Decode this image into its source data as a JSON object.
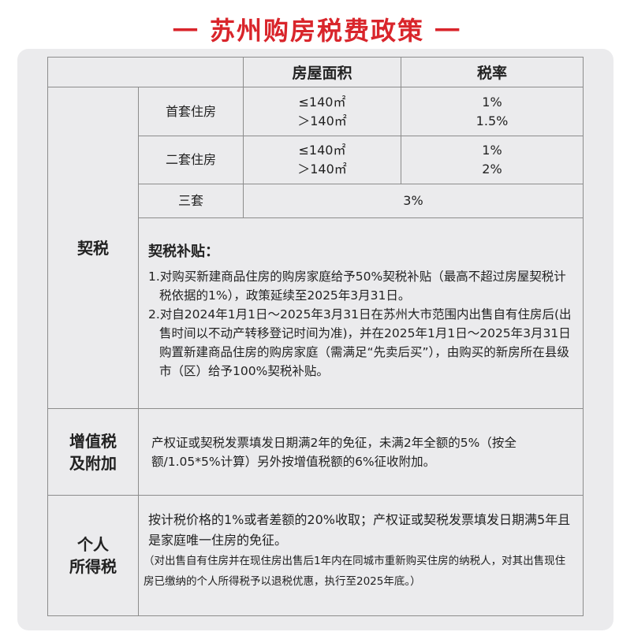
{
  "title": "一 苏州购房税费政策 一",
  "header": {
    "area": "房屋面积",
    "rate": "税率"
  },
  "deed_tax": {
    "label": "契税",
    "rows": [
      {
        "type": "首套住房",
        "areas": [
          "≤140㎡",
          "＞140㎡"
        ],
        "rates": [
          "1%",
          "1.5%"
        ]
      },
      {
        "type": "二套住房",
        "areas": [
          "≤140㎡",
          "＞140㎡"
        ],
        "rates": [
          "1%",
          "2%"
        ]
      },
      {
        "type": "三套",
        "rate": "3%"
      }
    ],
    "subsidy": {
      "title": "契税补贴：",
      "items": [
        "1.对购买新建商品住房的购房家庭给予50%契税补贴（最高不超过房屋契税计税依据的1%），政策延续至2025年3月31日。",
        "2.对自2024年1月1日～2025年3月31日在苏州大市范围内出售自有住房后(出售时间以不动产转移登记时间为准)，并在2025年1月1日～2025年3月31日购置新建商品住房的购房家庭（需满足“先卖后买”），由购买的新房所在县级市（区）给予100%契税补贴。"
      ]
    }
  },
  "vat": {
    "label_1": "增值税",
    "label_2": "及附加",
    "text": "产权证或契税发票填发日期满2年的免征，未满2年全额的5%（按全额/1.05*5%计算）另外按增值税额的6%征收附加。"
  },
  "income_tax": {
    "label_1": "个人",
    "label_2": "所得税",
    "text": "按计税价格的1%或者差额的20%收取；产权证或契税发票填发日期满5年且是家庭唯一住房的免征。",
    "note": "（对出售自有住房并在现住房出售后1年内在同城市重新购买住房的纳税人，对其出售现住房已缴纳的个人所得税予以退税优惠，执行至2025年底。）"
  },
  "colors": {
    "title": "#d9252b",
    "card": "#ebebed",
    "border": "#8c8c8c"
  }
}
